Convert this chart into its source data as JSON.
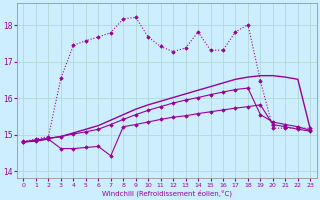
{
  "xlabel": "Windchill (Refroidissement éolien,°C)",
  "background_color": "#cceeff",
  "grid_color": "#aadddd",
  "line_color": "#990099",
  "xlim": [
    -0.5,
    23.5
  ],
  "ylim": [
    13.8,
    18.6
  ],
  "yticks": [
    14,
    15,
    16,
    17,
    18
  ],
  "xticks": [
    0,
    1,
    2,
    3,
    4,
    5,
    6,
    7,
    8,
    9,
    10,
    11,
    12,
    13,
    14,
    15,
    16,
    17,
    18,
    19,
    20,
    21,
    22,
    23
  ],
  "series": [
    {
      "x": [
        0,
        1,
        2,
        3,
        4,
        5,
        6,
        7,
        8,
        9,
        10,
        11,
        12,
        13,
        14,
        15,
        16,
        17,
        18,
        19,
        20,
        21,
        22,
        23
      ],
      "y": [
        14.8,
        14.85,
        14.9,
        14.95,
        15.05,
        15.15,
        15.25,
        15.4,
        15.55,
        15.7,
        15.82,
        15.92,
        16.02,
        16.12,
        16.22,
        16.32,
        16.42,
        16.52,
        16.58,
        16.62,
        16.62,
        16.58,
        16.52,
        15.15
      ],
      "marker": null,
      "linestyle": "-",
      "linewidth": 1.0,
      "markersize": 0
    },
    {
      "x": [
        0,
        1,
        2,
        3,
        4,
        5,
        6,
        7,
        8,
        9,
        10,
        11,
        12,
        13,
        14,
        15,
        16,
        17,
        18,
        19,
        20,
        21,
        22,
        23
      ],
      "y": [
        14.8,
        14.85,
        14.9,
        14.95,
        15.02,
        15.08,
        15.15,
        15.28,
        15.42,
        15.55,
        15.67,
        15.77,
        15.87,
        15.95,
        16.02,
        16.1,
        16.17,
        16.24,
        16.28,
        15.55,
        15.35,
        15.28,
        15.22,
        15.12
      ],
      "marker": "D",
      "linestyle": "-",
      "linewidth": 0.8,
      "markersize": 1.8
    },
    {
      "x": [
        0,
        1,
        2,
        3,
        4,
        5,
        6,
        7,
        8,
        9,
        10,
        11,
        12,
        13,
        14,
        15,
        16,
        17,
        18,
        19,
        20,
        21,
        22,
        23
      ],
      "y": [
        14.8,
        14.82,
        14.88,
        14.62,
        14.62,
        14.65,
        14.68,
        14.42,
        15.22,
        15.28,
        15.35,
        15.42,
        15.48,
        15.52,
        15.58,
        15.63,
        15.68,
        15.73,
        15.77,
        15.82,
        15.28,
        15.22,
        15.15,
        15.1
      ],
      "marker": "D",
      "linestyle": "-",
      "linewidth": 0.8,
      "markersize": 1.8
    },
    {
      "x": [
        0,
        1,
        2,
        3,
        4,
        5,
        6,
        7,
        8,
        9,
        10,
        11,
        12,
        13,
        14,
        15,
        16,
        17,
        18,
        19,
        20,
        21,
        22,
        23
      ],
      "y": [
        14.82,
        14.88,
        14.95,
        16.55,
        17.45,
        17.58,
        17.68,
        17.8,
        18.18,
        18.22,
        17.68,
        17.42,
        17.28,
        17.38,
        17.82,
        17.32,
        17.32,
        17.82,
        18.02,
        16.48,
        15.18,
        15.18,
        15.18,
        15.18
      ],
      "marker": "D",
      "linestyle": ":",
      "linewidth": 0.8,
      "markersize": 1.8
    }
  ]
}
